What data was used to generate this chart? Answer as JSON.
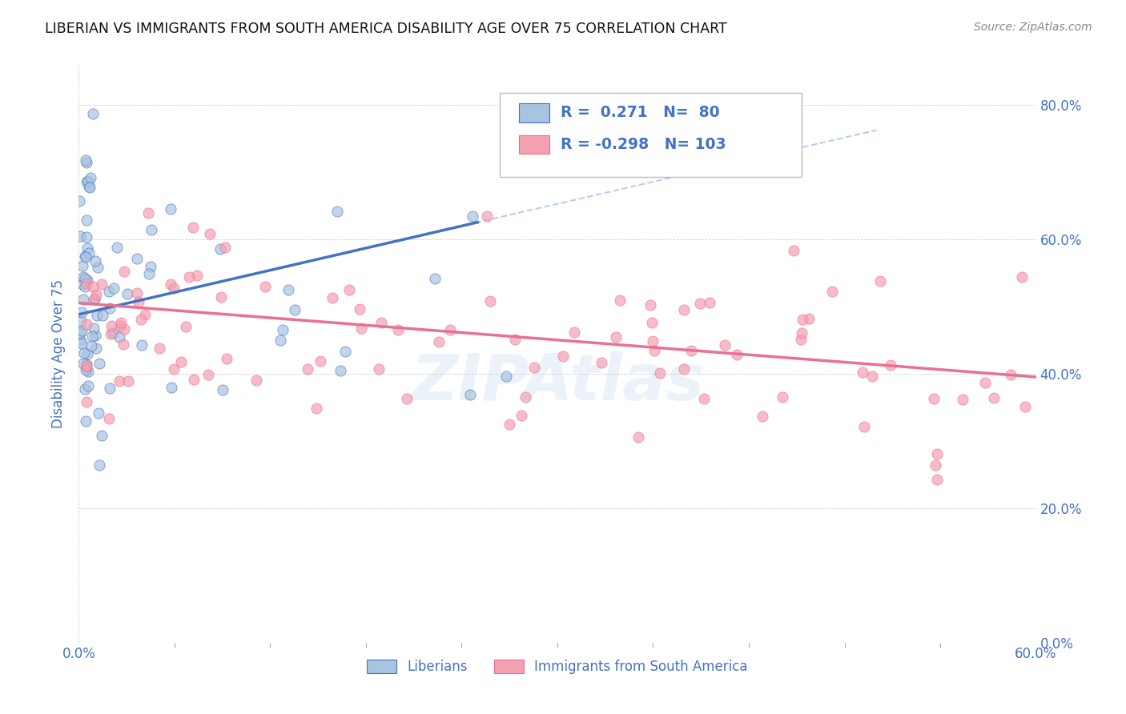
{
  "title": "LIBERIAN VS IMMIGRANTS FROM SOUTH AMERICA DISABILITY AGE OVER 75 CORRELATION CHART",
  "source": "Source: ZipAtlas.com",
  "xlim": [
    0.0,
    0.6
  ],
  "ylim": [
    0.0,
    0.86
  ],
  "ylabel": "Disability Age Over 75",
  "legend_labels": [
    "Liberians",
    "Immigrants from South America"
  ],
  "R_liberian": 0.271,
  "N_liberian": 80,
  "R_sa": -0.298,
  "N_sa": 103,
  "color_liberian": "#a8c4e0",
  "color_sa": "#f4a0b0",
  "line_color_liberian": "#4472c4",
  "line_color_sa": "#e87090",
  "line_color_dashed": "#90b8e0",
  "axis_label_color": "#4472c4",
  "watermark": "ZIPAtlas",
  "lib_line_x0": 0.0,
  "lib_line_y0": 0.488,
  "lib_line_x1": 0.25,
  "lib_line_y1": 0.625,
  "sa_line_x0": 0.0,
  "sa_line_y0": 0.505,
  "sa_line_x1": 0.6,
  "sa_line_y1": 0.395,
  "dash_line_x0": 0.0,
  "dash_line_y0": 0.488,
  "dash_line_x1": 0.5,
  "dash_line_y1": 0.762
}
